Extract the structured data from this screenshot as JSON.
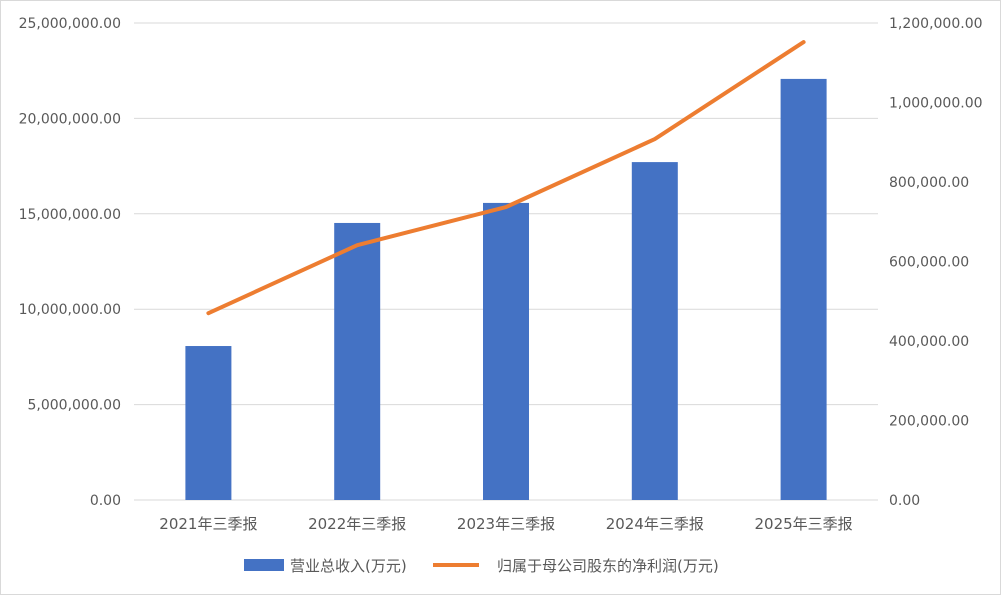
{
  "chart_data": {
    "type": "bar+line",
    "categories": [
      "2021年三季报",
      "2022年三季报",
      "2023年三季报",
      "2024年三季报",
      "2025年三季报"
    ],
    "series": [
      {
        "name": "营业总收入(万元)",
        "type": "bar",
        "axis": "left",
        "color": "#4472c4",
        "values": [
          8070000,
          14520000,
          15570000,
          17710000,
          22070000
        ]
      },
      {
        "name": "归属于母公司股东的净利润(万元)",
        "type": "line",
        "axis": "right",
        "color": "#ed7d31",
        "values": [
          470000,
          641000,
          737000,
          908000,
          1152000
        ]
      }
    ],
    "y_left": {
      "range": [
        0,
        25000000
      ],
      "ticks": [
        "0.00",
        "5,000,000.00",
        "10,000,000.00",
        "15,000,000.00",
        "20,000,000.00",
        "25,000,000.00"
      ],
      "tick_values": [
        0,
        5000000,
        10000000,
        15000000,
        20000000,
        25000000
      ]
    },
    "y_right": {
      "range": [
        0,
        1200000
      ],
      "ticks": [
        "0.00",
        "200,000.00",
        "400,000.00",
        "600,000.00",
        "800,000.00",
        "1,000,000.00",
        "1,200,000.00"
      ],
      "tick_values": [
        0,
        200000,
        400000,
        600000,
        800000,
        1000000,
        1200000
      ]
    },
    "grid": true,
    "gridColor": "#d9d9d9",
    "legend": "bottom"
  }
}
